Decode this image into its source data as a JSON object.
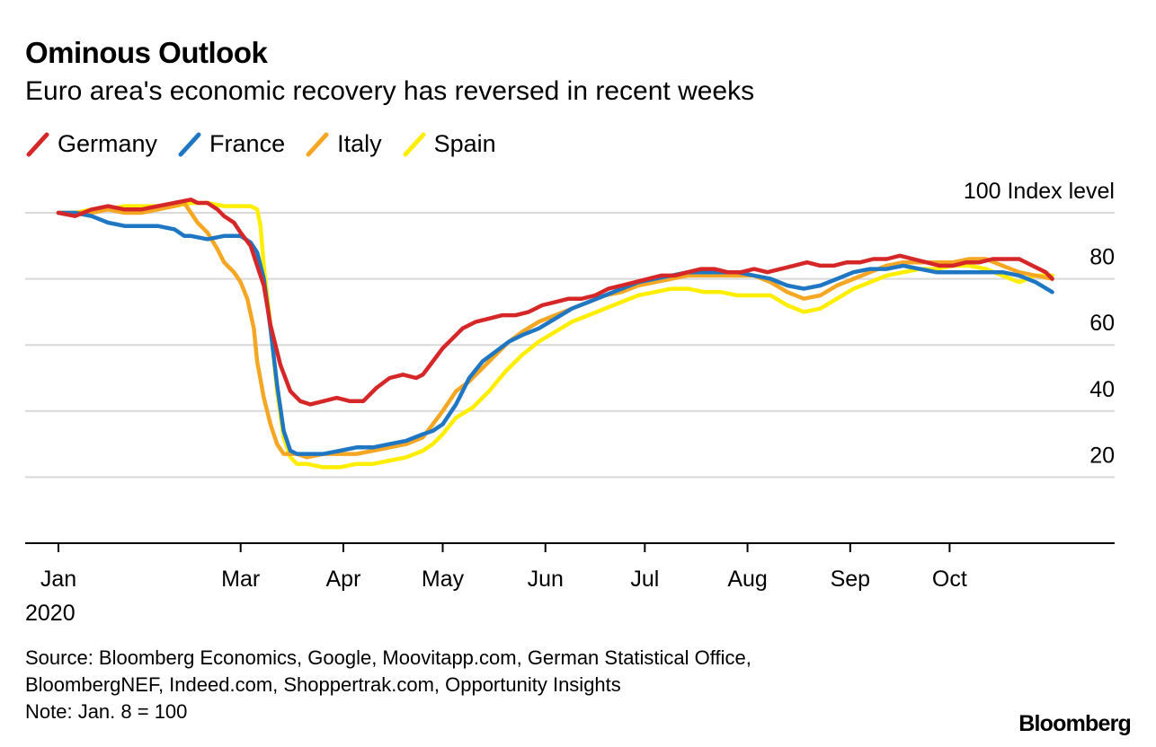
{
  "chart_data": {
    "type": "line",
    "title": "Ominous Outlook",
    "subtitle": "Euro area's economic recovery has reversed in recent weeks",
    "unit_label": "100 Index level",
    "ylim": [
      0,
      100
    ],
    "yticks": [
      20,
      40,
      60,
      80
    ],
    "grid": true,
    "legend_position": "top-left",
    "x_domain_days": [
      0,
      302
    ],
    "x_ticks": [
      {
        "label": "Jan",
        "day": 0
      },
      {
        "label": "Mar",
        "day": 55
      },
      {
        "label": "Apr",
        "day": 86
      },
      {
        "label": "May",
        "day": 116
      },
      {
        "label": "Jun",
        "day": 147
      },
      {
        "label": "Jul",
        "day": 177
      },
      {
        "label": "Aug",
        "day": 208
      },
      {
        "label": "Sep",
        "day": 239
      },
      {
        "label": "Oct",
        "day": 269
      }
    ],
    "year_label": "2020",
    "series": [
      {
        "name": "Germany",
        "color": "#d62728",
        "x": [
          0,
          5,
          10,
          15,
          20,
          25,
          30,
          35,
          40,
          42,
          45,
          48,
          50,
          53,
          55,
          58,
          60,
          62,
          64,
          67,
          70,
          73,
          76,
          80,
          84,
          88,
          92,
          96,
          100,
          104,
          108,
          110,
          113,
          116,
          119,
          122,
          126,
          130,
          134,
          138,
          142,
          146,
          150,
          154,
          158,
          162,
          166,
          170,
          174,
          178,
          182,
          186,
          190,
          194,
          198,
          202,
          206,
          210,
          214,
          218,
          222,
          226,
          230,
          234,
          238,
          242,
          246,
          250,
          254,
          258,
          262,
          266,
          270,
          274,
          278,
          282,
          286,
          290,
          294,
          298,
          300
        ],
        "values": [
          100,
          99,
          101,
          102,
          101,
          101,
          102,
          103,
          104,
          103,
          103,
          101,
          99,
          97,
          94,
          90,
          84,
          78,
          66,
          54,
          46,
          43,
          42,
          43,
          44,
          43,
          43,
          47,
          50,
          51,
          50,
          51,
          55,
          59,
          62,
          65,
          67,
          68,
          69,
          69,
          70,
          72,
          73,
          74,
          74,
          75,
          77,
          78,
          79,
          80,
          81,
          81,
          82,
          83,
          83,
          82,
          82,
          83,
          82,
          83,
          84,
          85,
          84,
          84,
          85,
          85,
          86,
          86,
          87,
          86,
          85,
          84,
          84,
          85,
          85,
          86,
          86,
          86,
          84,
          82,
          80
        ]
      },
      {
        "name": "France",
        "color": "#1f77c4",
        "x": [
          0,
          5,
          10,
          15,
          20,
          25,
          30,
          35,
          38,
          40,
          45,
          50,
          55,
          58,
          60,
          62,
          64,
          66,
          68,
          70,
          72,
          75,
          80,
          85,
          90,
          95,
          100,
          105,
          110,
          113,
          116,
          120,
          124,
          128,
          132,
          136,
          140,
          145,
          150,
          155,
          160,
          165,
          170,
          175,
          180,
          185,
          190,
          195,
          200,
          205,
          210,
          215,
          220,
          225,
          230,
          235,
          240,
          245,
          250,
          255,
          260,
          265,
          270,
          275,
          280,
          285,
          290,
          295,
          300
        ],
        "values": [
          100,
          100,
          99,
          97,
          96,
          96,
          96,
          95,
          93,
          93,
          92,
          93,
          93,
          91,
          88,
          80,
          65,
          48,
          34,
          28,
          27,
          27,
          27,
          28,
          29,
          29,
          30,
          31,
          33,
          34,
          36,
          42,
          50,
          55,
          58,
          61,
          63,
          65,
          68,
          71,
          73,
          75,
          77,
          79,
          80,
          81,
          82,
          82,
          82,
          82,
          81,
          80,
          78,
          77,
          78,
          80,
          82,
          83,
          83,
          84,
          83,
          82,
          82,
          82,
          82,
          82,
          81,
          79,
          76
        ]
      },
      {
        "name": "Italy",
        "color": "#f5a623",
        "x": [
          0,
          5,
          10,
          15,
          20,
          25,
          30,
          35,
          38,
          40,
          42,
          45,
          48,
          50,
          53,
          55,
          57,
          59,
          60,
          62,
          64,
          66,
          68,
          70,
          72,
          75,
          80,
          85,
          90,
          95,
          100,
          105,
          110,
          113,
          116,
          120,
          124,
          128,
          132,
          136,
          140,
          145,
          150,
          155,
          160,
          165,
          170,
          175,
          180,
          185,
          190,
          195,
          200,
          205,
          210,
          215,
          220,
          225,
          230,
          235,
          240,
          245,
          250,
          255,
          260,
          265,
          270,
          275,
          280,
          285,
          290,
          295,
          300
        ],
        "values": [
          100,
          100,
          100,
          101,
          100,
          100,
          101,
          102,
          103,
          100,
          97,
          94,
          89,
          85,
          82,
          79,
          74,
          65,
          55,
          44,
          36,
          30,
          27,
          27,
          27,
          26,
          27,
          27,
          27,
          28,
          29,
          30,
          32,
          36,
          40,
          46,
          49,
          53,
          57,
          61,
          64,
          67,
          69,
          71,
          73,
          75,
          76,
          78,
          79,
          80,
          81,
          81,
          81,
          81,
          81,
          79,
          76,
          74,
          75,
          78,
          80,
          82,
          84,
          85,
          85,
          85,
          85,
          86,
          86,
          84,
          82,
          81,
          80
        ]
      },
      {
        "name": "Spain",
        "color": "#ffee00",
        "x": [
          0,
          5,
          10,
          15,
          20,
          25,
          30,
          35,
          40,
          45,
          50,
          55,
          58,
          60,
          61,
          62,
          64,
          66,
          68,
          70,
          72,
          75,
          80,
          85,
          90,
          95,
          100,
          105,
          110,
          113,
          116,
          120,
          125,
          130,
          135,
          140,
          145,
          150,
          155,
          160,
          165,
          170,
          175,
          180,
          185,
          190,
          195,
          200,
          205,
          210,
          215,
          220,
          225,
          230,
          235,
          240,
          245,
          250,
          255,
          260,
          265,
          270,
          275,
          280,
          285,
          290,
          295,
          300
        ],
        "values": [
          100,
          100,
          101,
          101,
          102,
          102,
          102,
          102,
          103,
          103,
          102,
          102,
          102,
          101,
          96,
          84,
          66,
          46,
          32,
          26,
          24,
          24,
          23,
          23,
          24,
          24,
          25,
          26,
          28,
          30,
          33,
          38,
          41,
          46,
          52,
          57,
          61,
          64,
          67,
          69,
          71,
          73,
          75,
          76,
          77,
          77,
          76,
          76,
          75,
          75,
          75,
          72,
          70,
          71,
          74,
          77,
          79,
          81,
          82,
          83,
          83,
          84,
          84,
          83,
          81,
          79,
          81,
          81
        ]
      }
    ]
  },
  "source_lines": [
    "Source: Bloomberg Economics, Google, Moovitapp.com, German Statistical Office,",
    "BloombergNEF, Indeed.com, Shoppertrak.com, Opportunity Insights",
    "Note: Jan. 8 = 100"
  ],
  "brand": "Bloomberg"
}
